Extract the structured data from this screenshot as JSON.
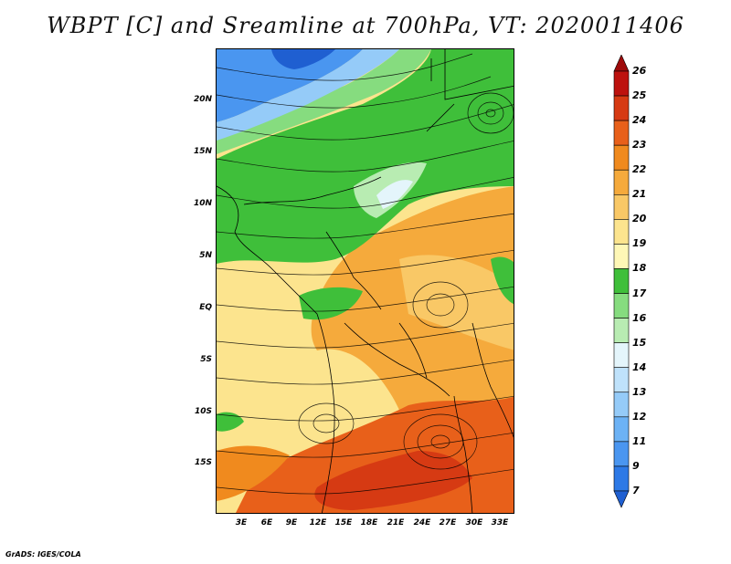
{
  "title": "WBPT [C] and Sreamline at 700hPa, VT: 2020011406",
  "footer": "GrADS: IGES/COLA",
  "map": {
    "lat_labels": [
      "20N",
      "15N",
      "10N",
      "5N",
      "EQ",
      "5S",
      "10S",
      "15S"
    ],
    "lon_labels": [
      "3E",
      "6E",
      "9E",
      "12E",
      "15E",
      "18E",
      "21E",
      "24E",
      "27E",
      "30E",
      "33E"
    ]
  },
  "colorbar": {
    "labels": [
      "7",
      "9",
      "11",
      "12",
      "13",
      "14",
      "15",
      "16",
      "17",
      "18",
      "19",
      "20",
      "21",
      "22",
      "23",
      "24",
      "25",
      "26"
    ],
    "colors": [
      "#1f5fd1",
      "#2d79e6",
      "#4a96f0",
      "#6cb2f5",
      "#95cbf8",
      "#bfe2fb",
      "#e4f5fb",
      "#b8ecb2",
      "#86dc7f",
      "#3fbf3a",
      "#fef7b6",
      "#fce48e",
      "#f9c866",
      "#f5aa3c",
      "#f08a1e",
      "#e8601a",
      "#d63a13",
      "#bd120e",
      "#9e0a0a"
    ]
  },
  "colors": {
    "green_dark": "#3fbf3a",
    "green_light": "#86dc7f",
    "pale_blue": "#bfe2fb",
    "blue": "#4a96f0",
    "yellow": "#fce48e",
    "orange": "#f5aa3c",
    "red_orange": "#e8601a"
  }
}
